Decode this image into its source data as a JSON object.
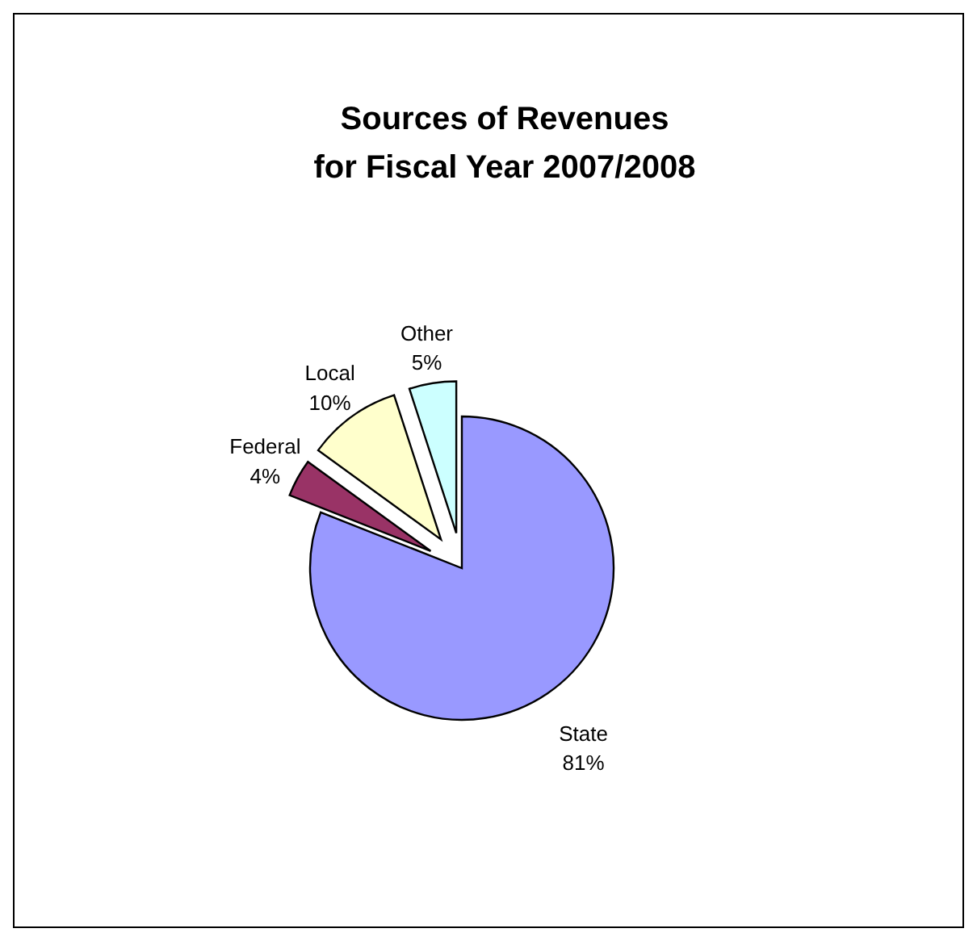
{
  "chart_data": {
    "type": "pie",
    "title": "Sources of Revenues\nfor Fiscal Year 2007/2008",
    "categories": [
      "State",
      "Federal",
      "Local",
      "Other"
    ],
    "values": [
      81,
      4,
      10,
      5
    ],
    "colors": [
      "#9999ff",
      "#993366",
      "#ffffcc",
      "#ccffff"
    ],
    "value_labels": [
      "81%",
      "4%",
      "10%",
      "5%"
    ]
  }
}
